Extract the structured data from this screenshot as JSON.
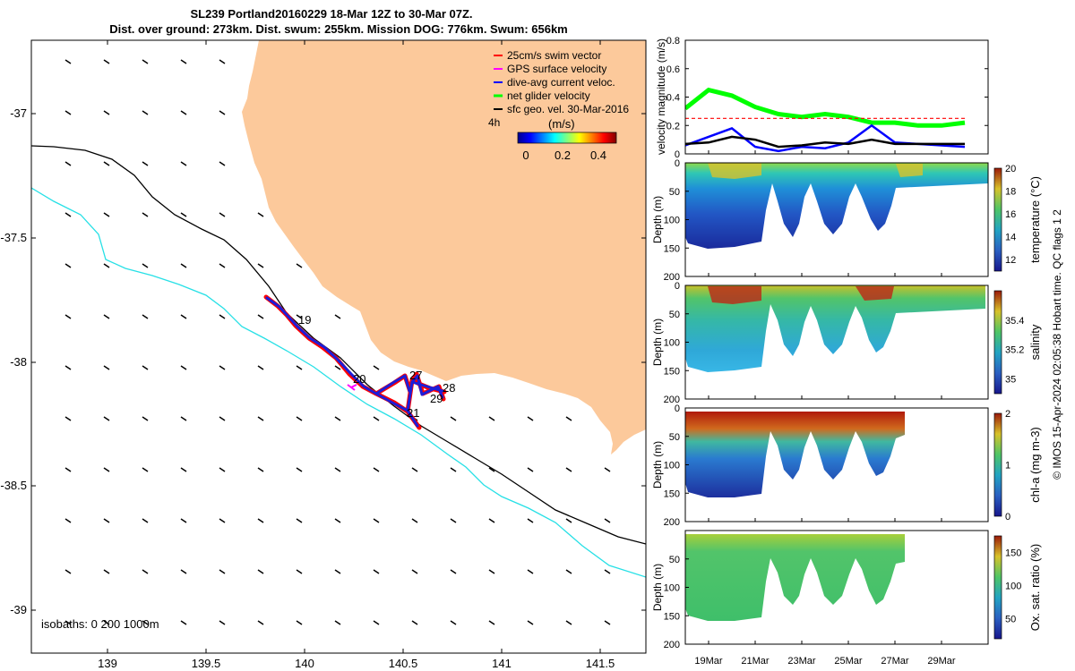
{
  "header": {
    "title_line1": "SL239 Portland20160229 18-Mar 12Z to 30-Mar 07Z.",
    "title_line2": "Dist. over ground: 273km. Dist. swum: 255km. Mission DOG: 776km. Swum: 656km"
  },
  "colors": {
    "land": "#fcc99b",
    "isobath_200": "#000000",
    "isobath_1000": "#27e0e6",
    "swim_vector": "#ff0000",
    "gps_velocity": "#ff00ff",
    "dive_avg_current": "#0000ff",
    "net_glider_velocity": "#00ff00",
    "sfc_geo_velocity": "#000000"
  },
  "map": {
    "lon_ticks": [
      "139",
      "139.5",
      "140",
      "140.5",
      "141",
      "141.5"
    ],
    "lat_ticks": [
      "-37",
      "-37.5",
      "-38",
      "-38.5",
      "-39"
    ],
    "isobath_label": "isobaths: 0   200  1000m",
    "track_day_labels": [
      "19",
      "20",
      "27",
      "28",
      "29",
      "21"
    ],
    "legend": {
      "items": [
        {
          "label": "25cm/s swim vector",
          "color": "#ff0000"
        },
        {
          "label": "GPS surface velocity",
          "color": "#ff00ff"
        },
        {
          "label": "dive-avg current veloc.",
          "color": "#0000ff"
        },
        {
          "label": "net glider velocity",
          "color": "#00ff00"
        },
        {
          "label": "sfc geo. vel. 30-Mar-2016",
          "color": "#000000"
        }
      ],
      "interval_label": "4h",
      "colorbar_title": "(m/s)",
      "colorbar_ticks": [
        "0",
        "0.2",
        "0.4"
      ]
    }
  },
  "chart_data": [
    {
      "type": "line",
      "title": "",
      "ylabel": "velocity magnitude (m/s)",
      "ylim": [
        0,
        0.8
      ],
      "yticks": [
        "0",
        "0.2",
        "0.4",
        "0.6",
        "0.8"
      ],
      "xlim": [
        "18-Mar-2016",
        "31-Mar-2016"
      ],
      "series": [
        {
          "color": "#00ff00",
          "x": [
            "18-Mar",
            "19-Mar",
            "20-Mar",
            "21-Mar",
            "22-Mar",
            "23-Mar",
            "24-Mar",
            "25-Mar",
            "26-Mar",
            "27-Mar",
            "28-Mar",
            "29-Mar",
            "30-Mar"
          ],
          "values": [
            0.32,
            0.45,
            0.41,
            0.33,
            0.28,
            0.26,
            0.28,
            0.26,
            0.22,
            0.22,
            0.2,
            0.2,
            0.22
          ]
        },
        {
          "color": "#0000ff",
          "x": [
            "18-Mar",
            "19-Mar",
            "20-Mar",
            "21-Mar",
            "22-Mar",
            "23-Mar",
            "24-Mar",
            "25-Mar",
            "26-Mar",
            "27-Mar",
            "28-Mar",
            "29-Mar",
            "30-Mar"
          ],
          "values": [
            0.06,
            0.12,
            0.18,
            0.05,
            0.02,
            0.05,
            0.04,
            0.08,
            0.2,
            0.08,
            0.07,
            0.06,
            0.05
          ]
        },
        {
          "color": "#000000",
          "x": [
            "18-Mar",
            "19-Mar",
            "20-Mar",
            "21-Mar",
            "22-Mar",
            "23-Mar",
            "24-Mar",
            "25-Mar",
            "26-Mar",
            "27-Mar",
            "28-Mar",
            "29-Mar",
            "30-Mar"
          ],
          "values": [
            0.07,
            0.08,
            0.12,
            0.1,
            0.05,
            0.06,
            0.08,
            0.07,
            0.1,
            0.07,
            0.07,
            0.07,
            0.07
          ]
        },
        {
          "color": "#ff0000",
          "x": [
            "18-Mar",
            "20-Mar",
            "22-Mar",
            "24-Mar",
            "26-Mar",
            "28-Mar",
            "30-Mar"
          ],
          "values": [
            0.25,
            0.25,
            0.25,
            0.25,
            0.25,
            0.25,
            0.25
          ]
        }
      ]
    },
    {
      "type": "heatmap",
      "ylabel": "Depth (m)",
      "ylim": [
        200,
        0
      ],
      "yticks": [
        "0",
        "50",
        "100",
        "150",
        "200"
      ],
      "colorbar_label": "temperature (°C)",
      "colorbar_ticks": [
        "12",
        "14",
        "16",
        "18",
        "20"
      ],
      "colorbar_range": [
        11,
        20
      ]
    },
    {
      "type": "heatmap",
      "ylabel": "Depth (m)",
      "ylim": [
        200,
        0
      ],
      "yticks": [
        "0",
        "50",
        "100",
        "150",
        "200"
      ],
      "colorbar_label": "salinity",
      "colorbar_ticks": [
        "35",
        "35.2",
        "35.4"
      ],
      "colorbar_range": [
        34.9,
        35.6
      ]
    },
    {
      "type": "heatmap",
      "ylabel": "Depth (m)",
      "ylim": [
        200,
        0
      ],
      "yticks": [
        "0",
        "50",
        "100",
        "150",
        "200"
      ],
      "colorbar_label": "chl-a (mg m-3)",
      "colorbar_ticks": [
        "0",
        "1",
        "2"
      ],
      "colorbar_range": [
        0,
        2
      ]
    },
    {
      "type": "heatmap",
      "ylabel": "Depth (m)",
      "ylim": [
        200,
        0
      ],
      "yticks": [
        "50",
        "100",
        "150",
        "200"
      ],
      "colorbar_label": "Ox. sat. ratio (%)",
      "colorbar_ticks": [
        "50",
        "100",
        "150"
      ],
      "colorbar_range": [
        20,
        175
      ],
      "xticks": [
        "19Mar",
        "21Mar",
        "23Mar",
        "25Mar",
        "27Mar",
        "29Mar"
      ]
    }
  ],
  "footer": {
    "credit": "© IMOS 15-Apr-2024 02:05:38 Hobart time. QC flags 1  2"
  }
}
